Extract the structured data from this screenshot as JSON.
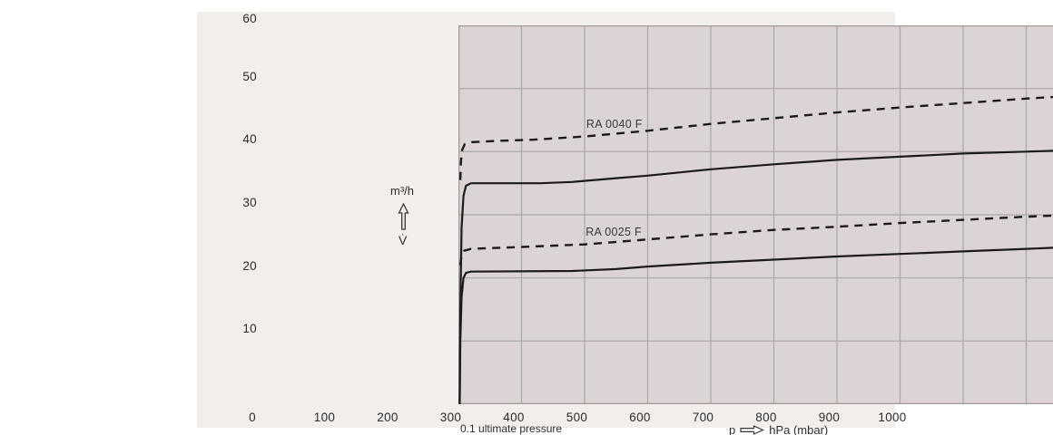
{
  "axis": {
    "y_unit": "m³/h",
    "y_symbol": "V̇",
    "x_symbol": "p",
    "x_unit": "hPa (mbar)",
    "footnote": "0.1 ultimate pressure"
  },
  "colors": {
    "panel_bg": "#f1eeec",
    "plot_bg": "#dcd4d4",
    "grid": "#a8a8a2",
    "border": "#a19b97",
    "curve": "#1b1b1b",
    "text": "#2e2c2a"
  },
  "chart_data": {
    "type": "line",
    "title": "",
    "xlabel": "p → hPa (mbar)",
    "ylabel": "V̇ (m³/h)",
    "xlim": [
      0,
      1000
    ],
    "ylim": [
      0,
      60
    ],
    "grid": true,
    "x_ticks": [
      0,
      100,
      200,
      300,
      400,
      500,
      600,
      700,
      800,
      900,
      1000
    ],
    "y_ticks": [
      60,
      50,
      40,
      30,
      20,
      10
    ],
    "legend_position": "inline-labels",
    "series": [
      {
        "name": "RA 0040 F (dashed)",
        "style": "dashed",
        "points": [
          [
            3,
            35.5
          ],
          [
            4,
            38.5
          ],
          [
            6,
            40.3
          ],
          [
            10,
            41.2
          ],
          [
            20,
            41.5
          ],
          [
            60,
            41.7
          ],
          [
            120,
            41.9
          ],
          [
            200,
            42.4
          ],
          [
            300,
            43.3
          ],
          [
            400,
            44.4
          ],
          [
            500,
            45.3
          ],
          [
            600,
            46.2
          ],
          [
            700,
            47.0
          ],
          [
            800,
            47.7
          ],
          [
            900,
            48.4
          ],
          [
            1000,
            49.0
          ]
        ]
      },
      {
        "name": "RA 0040 F (solid)",
        "style": "solid",
        "points": [
          [
            2,
            0
          ],
          [
            3,
            15
          ],
          [
            5,
            28
          ],
          [
            8,
            33
          ],
          [
            12,
            34.6
          ],
          [
            20,
            35
          ],
          [
            130,
            35
          ],
          [
            180,
            35.2
          ],
          [
            250,
            35.8
          ],
          [
            300,
            36.2
          ],
          [
            400,
            37.2
          ],
          [
            500,
            38.0
          ],
          [
            600,
            38.7
          ],
          [
            700,
            39.2
          ],
          [
            800,
            39.7
          ],
          [
            900,
            40.0
          ],
          [
            1000,
            40.3
          ]
        ]
      },
      {
        "name": "RA 0025 F (dashed)",
        "style": "dashed",
        "points": [
          [
            3,
            22
          ],
          [
            5,
            23.6
          ],
          [
            9,
            24.3
          ],
          [
            20,
            24.6
          ],
          [
            100,
            24.9
          ],
          [
            200,
            25.3
          ],
          [
            300,
            26.1
          ],
          [
            400,
            26.9
          ],
          [
            500,
            27.6
          ],
          [
            600,
            28.1
          ],
          [
            700,
            28.7
          ],
          [
            800,
            29.2
          ],
          [
            900,
            29.7
          ],
          [
            1000,
            30.1
          ]
        ]
      },
      {
        "name": "RA 0025 F (solid)",
        "style": "solid",
        "points": [
          [
            2,
            0
          ],
          [
            3,
            10
          ],
          [
            5,
            17
          ],
          [
            8,
            20
          ],
          [
            12,
            20.8
          ],
          [
            20,
            21
          ],
          [
            180,
            21.1
          ],
          [
            250,
            21.4
          ],
          [
            300,
            21.8
          ],
          [
            400,
            22.4
          ],
          [
            500,
            22.9
          ],
          [
            600,
            23.4
          ],
          [
            700,
            23.8
          ],
          [
            800,
            24.2
          ],
          [
            900,
            24.6
          ],
          [
            1000,
            25.0
          ]
        ]
      }
    ],
    "annotations": [
      {
        "text": "RA 0040 F",
        "x": 515,
        "y": 42.4
      },
      {
        "text": "RA 0025 F",
        "x": 514,
        "y": 25.3
      }
    ]
  }
}
